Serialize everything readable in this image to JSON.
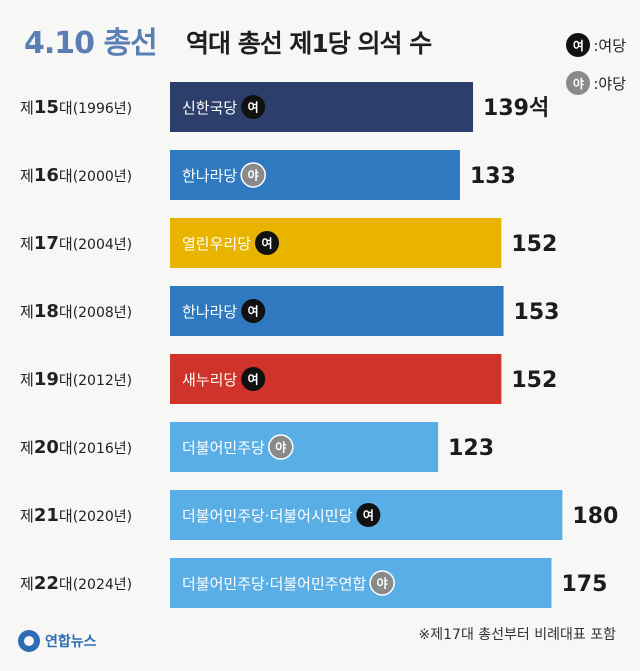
{
  "header": {
    "title_main": "4.10 총선",
    "title_sub": "역대 총선 제1당 의석 수"
  },
  "legend": {
    "ruling": {
      "badge": "여",
      "label": ":여당"
    },
    "opposition": {
      "badge": "야",
      "label": ":야당"
    }
  },
  "chart_data": {
    "type": "bar",
    "orientation": "horizontal",
    "title": "역대 총선 제1당 의석 수",
    "value_suffix_first": "석",
    "categories": [
      {
        "ord": "제",
        "num": "15",
        "dae": "대",
        "year": "(1996년)"
      },
      {
        "ord": "제",
        "num": "16",
        "dae": "대",
        "year": "(2000년)"
      },
      {
        "ord": "제",
        "num": "17",
        "dae": "대",
        "year": "(2004년)"
      },
      {
        "ord": "제",
        "num": "18",
        "dae": "대",
        "year": "(2008년)"
      },
      {
        "ord": "제",
        "num": "19",
        "dae": "대",
        "year": "(2012년)"
      },
      {
        "ord": "제",
        "num": "20",
        "dae": "대",
        "year": "(2016년)"
      },
      {
        "ord": "제",
        "num": "21",
        "dae": "대",
        "year": "(2020년)"
      },
      {
        "ord": "제",
        "num": "22",
        "dae": "대",
        "year": "(2024년)"
      }
    ],
    "bars": [
      {
        "party": "신한국당",
        "status": "여",
        "value": 139,
        "value_label": "139석",
        "color": "#2c3e6a"
      },
      {
        "party": "한나라당",
        "status": "야",
        "value": 133,
        "value_label": "133",
        "color": "#2e79c0"
      },
      {
        "party": "열린우리당",
        "status": "여",
        "value": 152,
        "value_label": "152",
        "color": "#e8b400"
      },
      {
        "party": "한나라당",
        "status": "여",
        "value": 153,
        "value_label": "153",
        "color": "#2e79c0"
      },
      {
        "party": "새누리당",
        "status": "여",
        "value": 152,
        "value_label": "152",
        "color": "#d0332a"
      },
      {
        "party": "더불어민주당",
        "status": "야",
        "value": 123,
        "value_label": "123",
        "color": "#5aaee6"
      },
      {
        "party": "더불어민주당·더불어시민당",
        "status": "여",
        "value": 180,
        "value_label": "180",
        "color": "#5aaee6"
      },
      {
        "party": "더불어민주당·더불어민주연합",
        "status": "야",
        "value": 175,
        "value_label": "175",
        "color": "#5aaee6"
      }
    ]
  },
  "footnote": "※제17대 총선부터 비례대표 포함",
  "logo": {
    "text": "연합뉴스"
  }
}
